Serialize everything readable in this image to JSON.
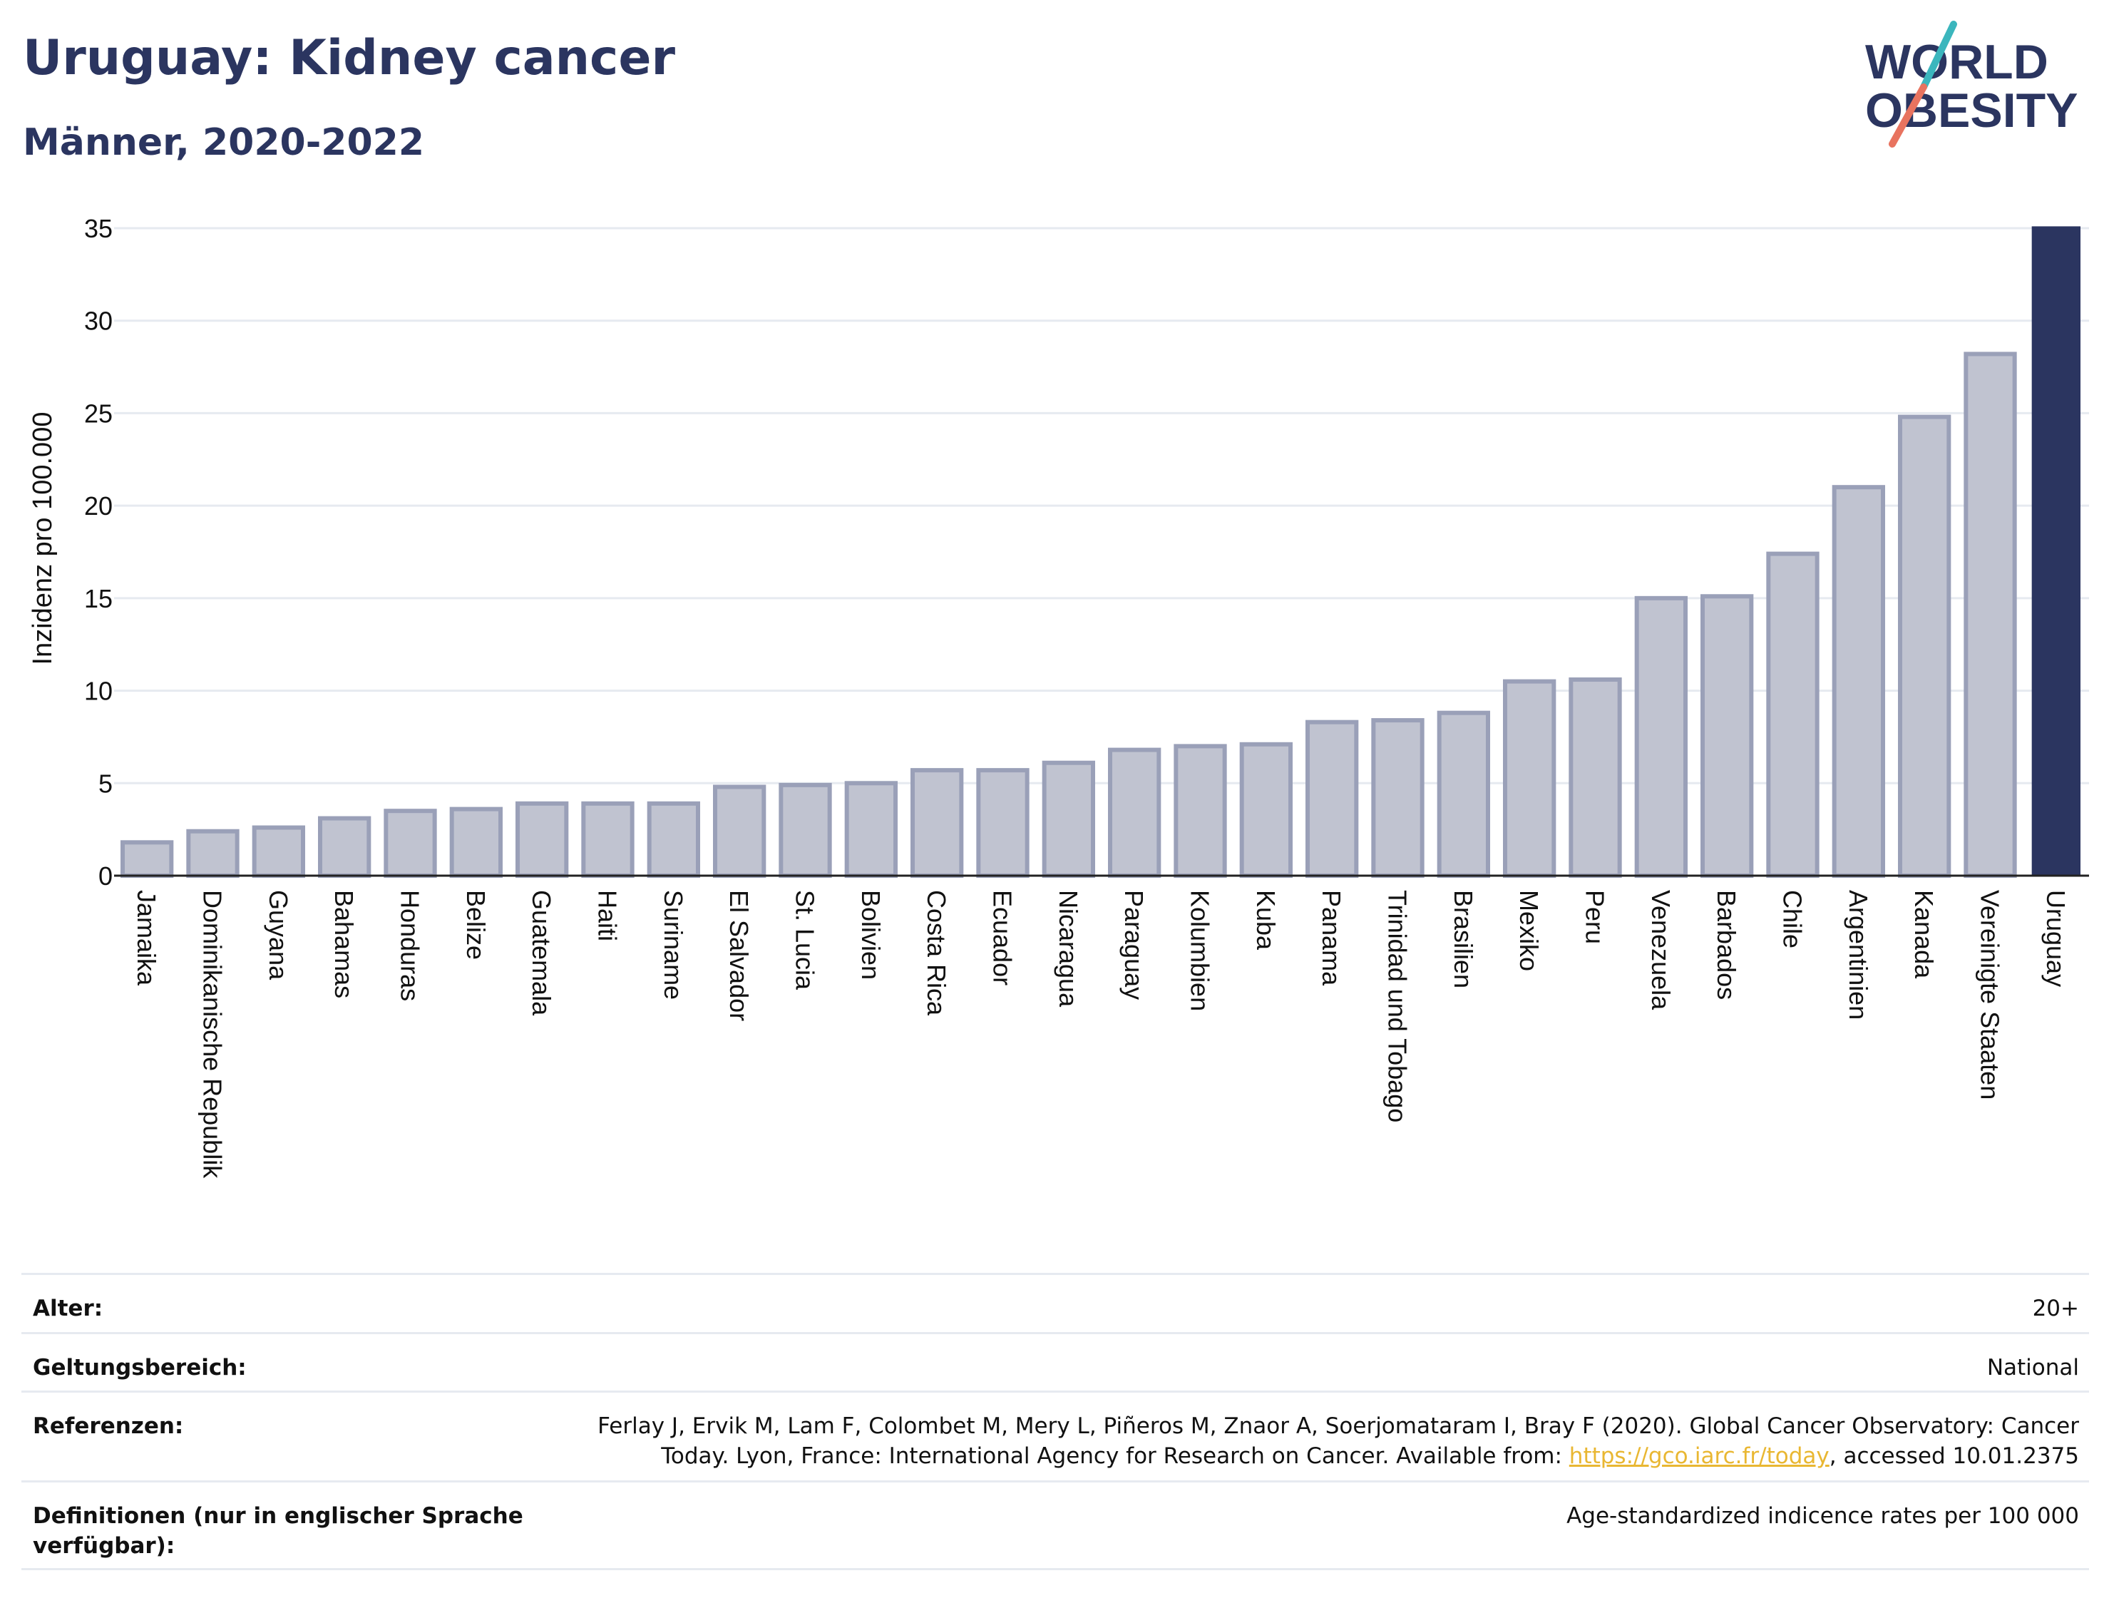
{
  "header": {
    "title": "Uruguay: Kidney cancer",
    "subtitle": "Männer, 2020-2022"
  },
  "logo": {
    "line1": "WORLD",
    "line2": "OBESITY",
    "colors": {
      "text": "#2b3560",
      "slash_teal": "#3bb6bd",
      "slash_coral": "#e8735f"
    }
  },
  "chart_data": {
    "type": "bar",
    "ylabel": "Inzidenz pro 100.000",
    "xlabel": "",
    "ylim": [
      0,
      35
    ],
    "yticks": [
      0,
      5,
      10,
      15,
      20,
      25,
      30,
      35
    ],
    "grid": true,
    "highlight": "Uruguay",
    "colors": {
      "bar": "#c0c3d0",
      "bar_edge": "#9aa0b8",
      "highlight": "#2b3560",
      "grid": "#e6eaf0"
    },
    "categories": [
      "Jamaika",
      "Dominikanische Republik",
      "Guyana",
      "Bahamas",
      "Honduras",
      "Belize",
      "Guatemala",
      "Haiti",
      "Suriname",
      "El Salvador",
      "St. Lucia",
      "Bolivien",
      "Costa Rica",
      "Ecuador",
      "Nicaragua",
      "Paraguay",
      "Kolumbien",
      "Kuba",
      "Panama",
      "Trinidad und Tobago",
      "Brasilien",
      "Mexiko",
      "Peru",
      "Venezuela",
      "Barbados",
      "Chile",
      "Argentinien",
      "Kanada",
      "Vereinigte Staaten",
      "Uruguay"
    ],
    "values": [
      1.8,
      2.4,
      2.6,
      3.1,
      3.5,
      3.6,
      3.9,
      3.9,
      3.9,
      4.8,
      4.9,
      5.0,
      5.7,
      5.7,
      6.1,
      6.8,
      7.0,
      7.1,
      8.3,
      8.4,
      8.8,
      10.5,
      10.6,
      15.0,
      15.1,
      17.4,
      21.0,
      24.8,
      28.2,
      35.1
    ]
  },
  "meta": {
    "age": {
      "label": "Alter:",
      "value": "20+"
    },
    "scope": {
      "label": "Geltungsbereich:",
      "value": "National"
    },
    "references": {
      "label": "Referenzen:",
      "text_before": "Ferlay J, Ervik M, Lam F, Colombet M, Mery L, Piñeros M, Znaor A, Soerjomataram I, Bray F (2020). Global Cancer Observatory: Cancer Today. Lyon, France: International Agency for Research on Cancer. Available from: ",
      "link": "https://gco.iarc.fr/today",
      "text_after": ", accessed 10.01.2375"
    },
    "definitions": {
      "label": "Definitionen (nur in englischer Sprache verfügbar):",
      "value": "Age-standardized indicence rates per 100 000"
    }
  }
}
